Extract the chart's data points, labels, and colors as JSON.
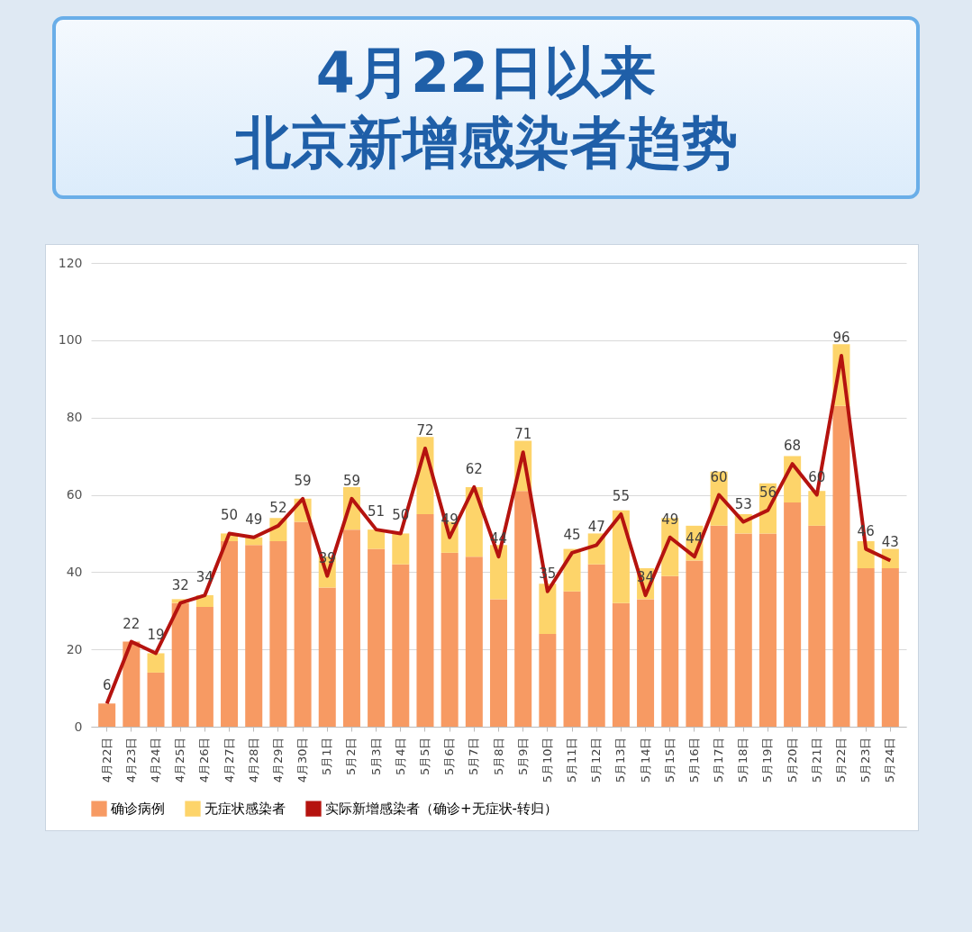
{
  "chart_data": {
    "type": "bar",
    "title": "4月22日以来",
    "subtitle": "北京新增感染者趋势",
    "stacked": true,
    "categories": [
      "4月22日",
      "4月23日",
      "4月24日",
      "4月25日",
      "4月26日",
      "4月27日",
      "4月28日",
      "4月29日",
      "4月30日",
      "5月1日",
      "5月2日",
      "5月3日",
      "5月4日",
      "5月5日",
      "5月6日",
      "5月7日",
      "5月8日",
      "5月9日",
      "5月10日",
      "5月11日",
      "5月12日",
      "5月13日",
      "5月14日",
      "5月15日",
      "5月16日",
      "5月17日",
      "5月18日",
      "5月19日",
      "5月20日",
      "5月21日",
      "5月22日",
      "5月23日",
      "5月24日"
    ],
    "series": [
      {
        "name": "确诊病例",
        "color": "#f79a63",
        "values": [
          6,
          22,
          14,
          32,
          31,
          48,
          47,
          48,
          53,
          36,
          51,
          46,
          42,
          55,
          45,
          44,
          33,
          61,
          24,
          35,
          42,
          32,
          33,
          39,
          43,
          52,
          50,
          50,
          58,
          52,
          83,
          41,
          41
        ]
      },
      {
        "name": "无症状感染者",
        "color": "#fdd46a",
        "values": [
          0,
          0,
          5,
          1,
          3,
          2,
          2,
          6,
          6,
          8,
          11,
          5,
          8,
          20,
          8,
          18,
          14,
          13,
          13,
          11,
          8,
          24,
          8,
          15,
          9,
          14,
          5,
          13,
          12,
          9,
          16,
          7,
          5
        ]
      },
      {
        "name": "实际新增感染者（确诊+无症状-转归）",
        "type": "line",
        "color": "#b5130f",
        "values": [
          6,
          22,
          19,
          32,
          34,
          50,
          49,
          52,
          59,
          39,
          59,
          51,
          50,
          72,
          49,
          62,
          44,
          71,
          35,
          45,
          47,
          55,
          34,
          49,
          44,
          60,
          53,
          56,
          68,
          60,
          96,
          46,
          43
        ],
        "value_labels": [
          "6",
          "22",
          "19",
          "32",
          "34",
          "50",
          "49",
          "52",
          "59",
          "39",
          "59",
          "51",
          "50",
          "72",
          "49",
          "62",
          "44",
          "71",
          "35",
          "45",
          "47",
          "55",
          "34",
          "49",
          "44",
          "60",
          "53",
          "56",
          "68",
          "60",
          "96",
          "46",
          "43"
        ]
      }
    ],
    "ylim": [
      0,
      120
    ],
    "yticks": [
      0,
      20,
      40,
      60,
      80,
      100,
      120
    ],
    "grid": "y",
    "legend": "bottom",
    "marker": "none"
  }
}
